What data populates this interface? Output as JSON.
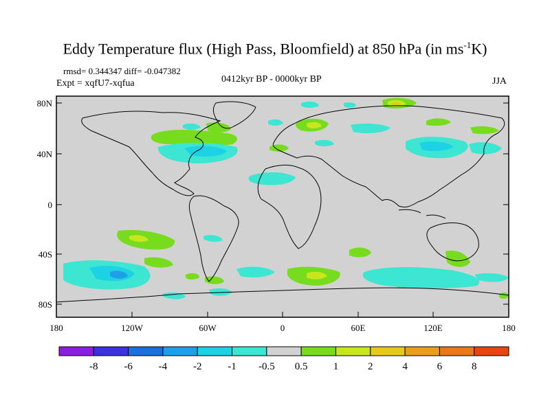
{
  "title": {
    "main": "Eddy Temperature flux (High Pass, Bloomfield) at 850 hPa (in ms",
    "sup": "-1",
    "end": "K)"
  },
  "stats": "rmsd= 0.344347 diff= -0.047382",
  "expt": "Expt = xqfU7-xqfua",
  "period": "0412kyr BP - 0000kyr BP",
  "season": "JJA",
  "lat_ticks": [
    "80N",
    "40N",
    "0",
    "40S",
    "80S"
  ],
  "lon_ticks": [
    "180",
    "120W",
    "60W",
    "0",
    "60E",
    "120E",
    "180"
  ],
  "colorbar": {
    "colors": [
      "#8c1ee0",
      "#3c32dc",
      "#1e6edc",
      "#1ea0e6",
      "#1ed2e6",
      "#3ce6d2",
      "#d2d2d2",
      "#78dc1e",
      "#c8e61e",
      "#e6c81e",
      "#e6a01e",
      "#e6781e",
      "#e64614"
    ],
    "labels": [
      "-8",
      "-6",
      "-4",
      "-2",
      "-1",
      "-0.5",
      "0.5",
      "1",
      "2",
      "4",
      "6",
      "8"
    ]
  },
  "colors": {
    "background": "#d2d2d2",
    "coast": "#000000"
  }
}
